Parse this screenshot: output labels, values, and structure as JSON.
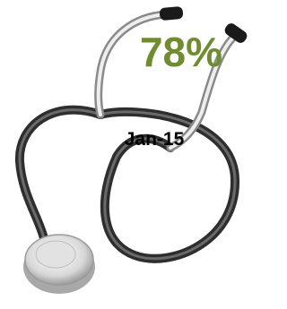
{
  "value_text": "78%",
  "date": "Jan-15"
}
